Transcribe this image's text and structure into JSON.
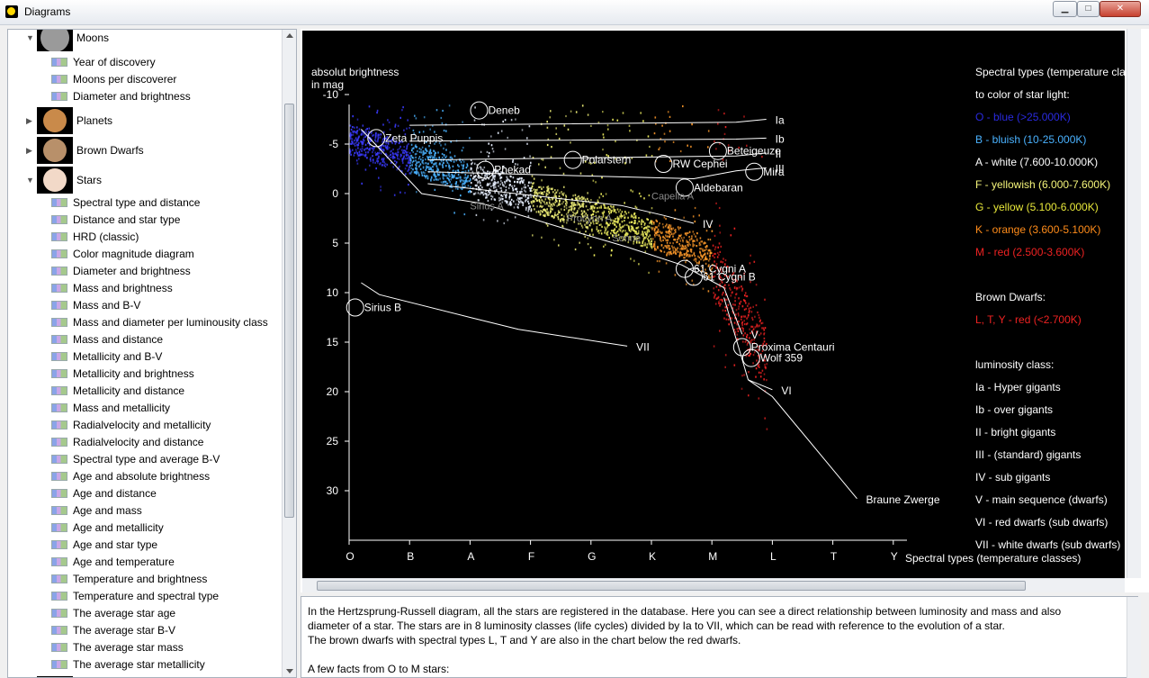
{
  "window": {
    "title": "Diagrams",
    "minimize": "▁",
    "maximize": "□",
    "close": "✕"
  },
  "tree": {
    "categories": [
      {
        "id": "moons",
        "label": "Moons",
        "expanded": true,
        "image": "moon-thumbnail",
        "color": "#9a9a9a"
      },
      {
        "id": "planets",
        "label": "Planets",
        "expanded": false,
        "image": "planet-thumbnail",
        "color": "#c98a4a"
      },
      {
        "id": "brown_dwarfs",
        "label": "Brown Dwarfs",
        "expanded": false,
        "image": "jupiter-thumbnail",
        "color": "#b8906a"
      },
      {
        "id": "stars",
        "label": "Stars",
        "expanded": true,
        "image": "star-thumbnail",
        "color": "#f2d9c8"
      }
    ],
    "moon_items": [
      "Year of discovery",
      "Moons per discoverer",
      "Diameter and brightness"
    ],
    "star_items": [
      "Spectral type and distance",
      "Distance and star type",
      "HRD (classic)",
      "Color magnitude diagram",
      "Diameter and brightness",
      "Mass and brightness",
      "Mass and B-V",
      "Mass and diameter per luminousity class",
      "Mass and distance",
      "Metallicity and B-V",
      "Metallicity and brightness",
      "Metallicity and distance",
      "Mass and metallicity",
      "Radialvelocity and metallicity",
      "Radialvelocity and distance",
      "Spectral type and average B-V",
      "Age and absolute brightness",
      "Age and distance",
      "Age and mass",
      "Age and metallicity",
      "Age and star type",
      "Age and temperature",
      "Temperature and brightness",
      "Temperature and spectral type",
      "The average star age",
      "The average star B-V",
      "The average star mass",
      "The average star metallicity"
    ]
  },
  "chart_data": {
    "type": "scatter",
    "title": "",
    "ylabel": [
      "absolut brightness",
      "in mag"
    ],
    "xlabel": "Spectral types (temperature classes)",
    "x_categories": [
      "O",
      "B",
      "A",
      "F",
      "G",
      "K",
      "M",
      "L",
      "T",
      "Y"
    ],
    "y_ticks": [
      -10,
      -5,
      0,
      5,
      10,
      15,
      20,
      25,
      30
    ],
    "ylim": [
      -12,
      34
    ],
    "y_inverted": true,
    "stars": [
      {
        "name": "Deneb",
        "x": 2.15,
        "y": -8.4
      },
      {
        "name": "Zeta Puppis",
        "x": 0.45,
        "y": -5.6
      },
      {
        "name": "Phekad",
        "x": 2.25,
        "y": -2.4
      },
      {
        "name": "Polarstern",
        "x": 3.7,
        "y": -3.4
      },
      {
        "name": "RW Cephei",
        "x": 5.2,
        "y": -3.0
      },
      {
        "name": "Beteigeuze",
        "x": 6.1,
        "y": -4.3
      },
      {
        "name": "Mira",
        "x": 6.7,
        "y": -2.2
      },
      {
        "name": "Aldebaran",
        "x": 5.55,
        "y": -0.6
      },
      {
        "name": "61 Cygni A",
        "x": 5.55,
        "y": 7.6
      },
      {
        "name": "61 Cygni B",
        "x": 5.7,
        "y": 8.4
      },
      {
        "name": "Sirius B",
        "x": 0.1,
        "y": 11.5
      },
      {
        "name": "Proxima Centauri",
        "x": 6.5,
        "y": 15.5
      },
      {
        "name": "Wolf 359",
        "x": 6.65,
        "y": 16.6
      }
    ],
    "faint_labels": [
      {
        "name": "Capella A",
        "x": 5.0,
        "y": 0.6
      },
      {
        "name": "Sirius A",
        "x": 2.0,
        "y": 1.6
      },
      {
        "name": "Procyon A",
        "x": 3.6,
        "y": 2.8
      },
      {
        "name": "Sonne",
        "x": 4.35,
        "y": 4.8
      }
    ],
    "luminosity_lines": [
      {
        "name": "Ia",
        "points": [
          [
            1.0,
            -6.9
          ],
          [
            6.4,
            -7.2
          ],
          [
            6.9,
            -7.5
          ]
        ]
      },
      {
        "name": "Ib",
        "points": [
          [
            1.0,
            -5.3
          ],
          [
            6.4,
            -5.5
          ],
          [
            6.9,
            -5.6
          ]
        ]
      },
      {
        "name": "II",
        "points": [
          [
            1.3,
            -3.4
          ],
          [
            6.4,
            -3.8
          ],
          [
            6.9,
            -4.1
          ]
        ]
      },
      {
        "name": "III",
        "points": [
          [
            1.3,
            -2.2
          ],
          [
            5.7,
            -1.5
          ],
          [
            6.4,
            -2.3
          ],
          [
            6.9,
            -2.6
          ]
        ]
      },
      {
        "name": "IV",
        "points": [
          [
            1.3,
            -1.0
          ],
          [
            4.5,
            1.2
          ],
          [
            5.2,
            2.2
          ],
          [
            5.7,
            3.0
          ]
        ]
      },
      {
        "name": "V",
        "points": [
          [
            0.2,
            -6.5
          ],
          [
            1.2,
            0.0
          ],
          [
            2.2,
            1.0
          ],
          [
            3.6,
            3.6
          ],
          [
            4.6,
            5.4
          ],
          [
            5.5,
            7.2
          ],
          [
            6.2,
            9.5
          ],
          [
            6.5,
            14.2
          ]
        ]
      },
      {
        "name": "VI",
        "points": [
          [
            6.2,
            10.5
          ],
          [
            6.6,
            18.8
          ],
          [
            7.0,
            19.8
          ]
        ]
      },
      {
        "name": "VII",
        "points": [
          [
            0.2,
            9.0
          ],
          [
            0.5,
            10.2
          ],
          [
            2.0,
            12.5
          ],
          [
            2.8,
            13.7
          ],
          [
            4.6,
            15.4
          ]
        ]
      },
      {
        "name": "Braune Zwerge",
        "points": [
          [
            6.6,
            18.8
          ],
          [
            7.0,
            20.5
          ],
          [
            8.4,
            30.8
          ]
        ]
      }
    ],
    "legend_spectral": {
      "title": [
        "Spectral types (temperature cla",
        "to color of star light:"
      ],
      "items": [
        {
          "label": "O - blue (>25.000K)",
          "color": "#2a2ae0"
        },
        {
          "label": "B - bluish (10-25.000K)",
          "color": "#4ab2ff"
        },
        {
          "label": "A - white (7.600-10.000K)",
          "color": "#ffffff"
        },
        {
          "label": "F - yellowish (6.000-7.600K)",
          "color": "#f5f57a"
        },
        {
          "label": "G - yellow (5.100-6.000K)",
          "color": "#e8e83a"
        },
        {
          "label": "K - orange (3.600-5.100K)",
          "color": "#ff8c1a"
        },
        {
          "label": "M - red (2.500-3.600K)",
          "color": "#ee2222"
        }
      ]
    },
    "legend_brown": {
      "title": "Brown Dwarfs:",
      "item": {
        "label": "L, T, Y - red (<2.700K)",
        "color": "#ee2222"
      }
    },
    "legend_lum": {
      "title": "luminosity class:",
      "items": [
        "Ia - Hyper gigants",
        "Ib - over gigants",
        "II - bright gigants",
        "III - (standard) gigants",
        "IV - sub gigants",
        "V - main sequence (dwarfs)",
        "VI - red dwarfs (sub dwarfs)",
        "VII - white dwarfs (sub dwarfs)"
      ]
    }
  },
  "description": {
    "lines": [
      "In the Hertzsprung-Russell diagram, all the stars are registered in the database. Here you can see a direct relationship between luminosity and mass and also",
      "diameter of a star. The stars are in 8 luminosity classes (life cycles) divided by Ia to VII, which can be read with reference to the evolution of a star.",
      "The brown dwarfs with spectral types L, T and Y are also in the chart below the red dwarfs."
    ],
    "facts_heading": "A few facts from O to M stars:"
  }
}
